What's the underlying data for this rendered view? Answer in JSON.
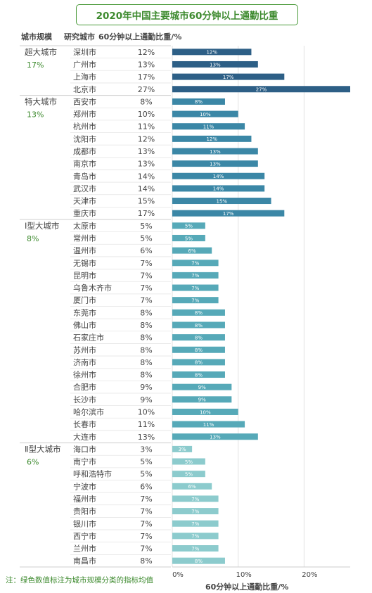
{
  "header": {
    "col_scale": "城市规模",
    "col_city": "研究城市",
    "col_value": "60分钟以上通勤比重/%"
  },
  "footnote": "注：绿色数值标注为城市规模分类的指标均值",
  "colors": {
    "title_green": "#3d8a2e",
    "mean_green": "#3d8a2e",
    "group_bar_colors": [
      "#2d5f86",
      "#3b87a6",
      "#56a9b8",
      "#8ccbcd"
    ]
  },
  "chart_data": {
    "type": "bar",
    "orientation": "horizontal",
    "title": "2020年中国主要城市60分钟以上通勤比重",
    "xlabel": "60分钟以上通勤比重/%",
    "xlim": [
      0,
      27
    ],
    "xticks": [
      0,
      10,
      20
    ],
    "xtick_labels": [
      "0%",
      "10%",
      "20%"
    ],
    "groups": [
      {
        "name": "超大城市",
        "mean_label": "17%",
        "cities": [
          "深圳市",
          "广州市",
          "上海市",
          "北京市"
        ],
        "values": [
          12,
          13,
          17,
          27
        ]
      },
      {
        "name": "特大城市",
        "mean_label": "13%",
        "cities": [
          "西安市",
          "郑州市",
          "杭州市",
          "沈阳市",
          "成都市",
          "南京市",
          "青岛市",
          "武汉市",
          "天津市",
          "重庆市"
        ],
        "values": [
          8,
          10,
          11,
          12,
          13,
          13,
          14,
          14,
          15,
          17
        ]
      },
      {
        "name": "Ⅰ型大城市",
        "mean_label": "8%",
        "cities": [
          "太原市",
          "常州市",
          "温州市",
          "无锡市",
          "昆明市",
          "乌鲁木齐市",
          "厦门市",
          "东莞市",
          "佛山市",
          "石家庄市",
          "苏州市",
          "济南市",
          "徐州市",
          "合肥市",
          "长沙市",
          "哈尔滨市",
          "长春市",
          "大连市"
        ],
        "values": [
          5,
          5,
          6,
          7,
          7,
          7,
          7,
          8,
          8,
          8,
          8,
          8,
          8,
          9,
          9,
          10,
          11,
          13
        ]
      },
      {
        "name": "Ⅱ型大城市",
        "mean_label": "6%",
        "cities": [
          "海口市",
          "南宁市",
          "呼和浩特市",
          "宁波市",
          "福州市",
          "贵阳市",
          "银川市",
          "西宁市",
          "兰州市",
          "南昌市"
        ],
        "values": [
          3,
          5,
          5,
          6,
          7,
          7,
          7,
          7,
          7,
          8
        ]
      }
    ]
  }
}
